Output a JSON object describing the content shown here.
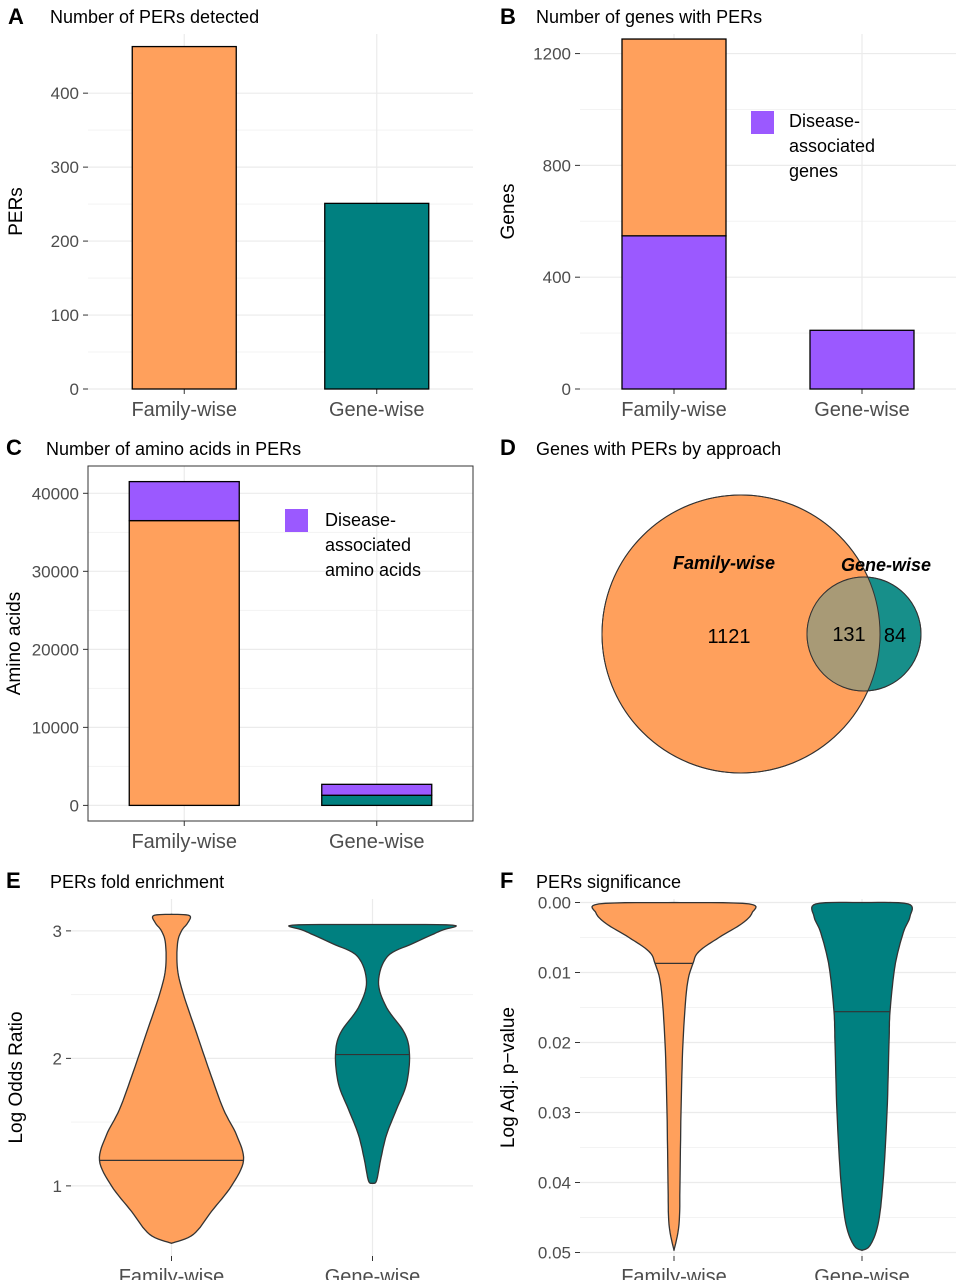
{
  "colors": {
    "orange": "#FFA05C",
    "teal": "#008080",
    "purple": "#9B59FF",
    "overlap": "#A89A76",
    "grid": "#ebebeb",
    "outline": "#333333"
  },
  "chart_data": [
    {
      "panel": "A",
      "type": "bar",
      "title": "Number of PERs detected",
      "ylabel": "PERs",
      "categories": [
        "Family-wise",
        "Gene-wise"
      ],
      "values": [
        463,
        251
      ],
      "ylim": [
        0,
        480
      ],
      "yticks": [
        0,
        100,
        200,
        300,
        400
      ],
      "colors": [
        "#FFA05C",
        "#008080"
      ],
      "grid": true
    },
    {
      "panel": "B",
      "type": "bar",
      "stacked": true,
      "title": "Number of genes with PERs",
      "ylabel": "Genes",
      "categories": [
        "Family-wise",
        "Gene-wise"
      ],
      "series": [
        {
          "name": "Disease-associated genes",
          "color": "#9B59FF",
          "values": [
            548,
            210
          ]
        },
        {
          "color": "#FFA05C",
          "values": [
            704,
            0
          ]
        }
      ],
      "legend": {
        "label_lines": [
          "Disease-",
          "associated",
          "genes"
        ],
        "color": "#9B59FF",
        "position": "right"
      },
      "ylim": [
        0,
        1270
      ],
      "yticks": [
        0,
        400,
        800,
        1200
      ],
      "grid": true
    },
    {
      "panel": "C",
      "type": "bar",
      "stacked": true,
      "title": "Number of amino acids in PERs",
      "ylabel": "Amino acids",
      "categories": [
        "Family-wise",
        "Gene-wise"
      ],
      "series": [
        {
          "color": "#FFA05C",
          "values": [
            36500,
            0
          ]
        },
        {
          "color": "#008080",
          "values": [
            0,
            1300
          ]
        },
        {
          "name": "Disease-associated amino acids",
          "color": "#9B59FF",
          "values": [
            5000,
            1400
          ]
        }
      ],
      "legend": {
        "label_lines": [
          "Disease-",
          "associated",
          "amino acids"
        ],
        "color": "#9B59FF",
        "position": "right"
      },
      "ylim": [
        -2000,
        43500
      ],
      "yticks": [
        0,
        10000,
        20000,
        30000,
        40000
      ],
      "grid": true
    },
    {
      "panel": "D",
      "type": "venn",
      "title": "Genes with PERs by approach",
      "sets": [
        {
          "name": "Family-wise",
          "only": 1121,
          "color": "#FFA05C"
        },
        {
          "name": "Gene-wise",
          "only": 84,
          "color": "#008080"
        }
      ],
      "intersection": 131
    },
    {
      "panel": "E",
      "type": "violin",
      "title": "PERs fold enrichment",
      "ylabel": "Log Odds Ratio",
      "categories": [
        "Family-wise",
        "Gene-wise"
      ],
      "colors": [
        "#FFA05C",
        "#008080"
      ],
      "medians": [
        1.2,
        2.03
      ],
      "ranges": [
        [
          0.55,
          3.13
        ],
        [
          1.02,
          3.05
        ]
      ],
      "ylim": [
        0.45,
        3.25
      ],
      "yticks": [
        1,
        2,
        3
      ],
      "grid": true
    },
    {
      "panel": "F",
      "type": "violin",
      "title": "PERs significance",
      "ylabel": "Log Adj. p−value",
      "categories": [
        "Family-wise",
        "Gene-wise"
      ],
      "colors": [
        "#FFA05C",
        "#008080"
      ],
      "medians": [
        0.0087,
        0.0156
      ],
      "ranges": [
        [
          0.0,
          0.0497
        ],
        [
          0.0,
          0.0497
        ]
      ],
      "ylim": [
        0.0505,
        -0.0005
      ],
      "yticks": [
        0.0,
        0.01,
        0.02,
        0.03,
        0.04,
        0.05
      ],
      "ytick_labels": [
        "0.00",
        "0.01",
        "0.02",
        "0.03",
        "0.04",
        "0.05"
      ],
      "reversed": true,
      "grid": true
    }
  ]
}
